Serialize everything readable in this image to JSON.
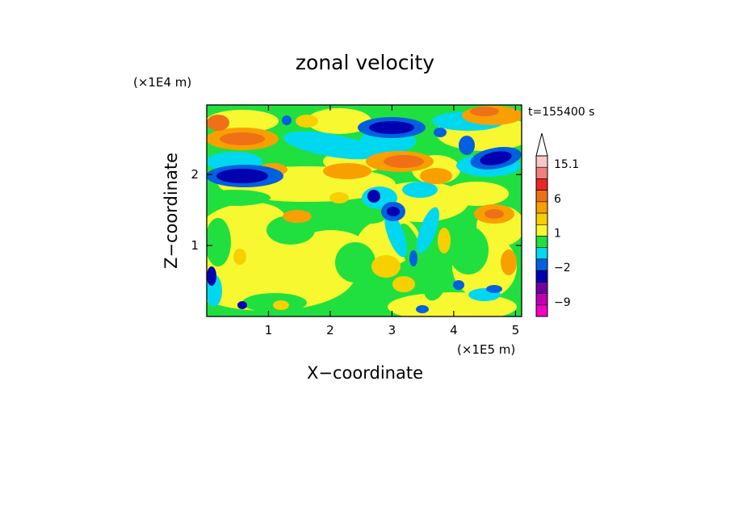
{
  "chart_data": {
    "type": "heatmap",
    "title": "zonal velocity",
    "xlabel": "X−coordinate",
    "ylabel": "Z−coordinate",
    "x_unit": "(×1E5 m)",
    "y_unit": "(×1E4 m)",
    "time_label": "t=155400 s",
    "xlim": [
      0,
      5.1
    ],
    "ylim": [
      0,
      2.98
    ],
    "x_ticks": [
      {
        "value": 1,
        "label": "1"
      },
      {
        "value": 2,
        "label": "2"
      },
      {
        "value": 3,
        "label": "3"
      },
      {
        "value": 4,
        "label": "4"
      },
      {
        "value": 5,
        "label": "5"
      }
    ],
    "y_ticks": [
      {
        "value": 1,
        "label": "1"
      },
      {
        "value": 2,
        "label": "2"
      }
    ],
    "colorbar": {
      "levels": [
        {
          "upper": 15.1,
          "color": "#f8c8c8"
        },
        {
          "upper": 12,
          "color": "#f08080"
        },
        {
          "upper": 9,
          "color": "#e82828"
        },
        {
          "upper": 6,
          "color": "#f07018"
        },
        {
          "upper": 3,
          "color": "#f8a000"
        },
        {
          "upper": 2,
          "color": "#f8d000"
        },
        {
          "upper": 1,
          "color": "#f8f830"
        },
        {
          "upper": 0,
          "color": "#20e040"
        },
        {
          "upper": -1,
          "color": "#00d8f0"
        },
        {
          "upper": -2,
          "color": "#0060e0"
        },
        {
          "upper": -5,
          "color": "#0000b0"
        },
        {
          "upper": -7,
          "color": "#7000a0"
        },
        {
          "upper": -9,
          "color": "#c000b0"
        },
        {
          "upper": -12,
          "color": "#f000c0"
        }
      ],
      "labels": [
        "15.1",
        "6",
        "1",
        "−2",
        "−9"
      ]
    },
    "grid": false
  }
}
